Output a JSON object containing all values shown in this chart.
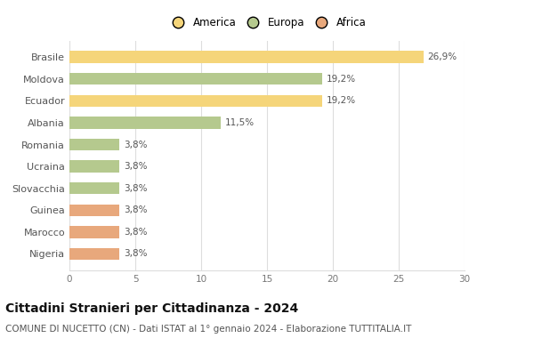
{
  "categories": [
    "Brasile",
    "Moldova",
    "Ecuador",
    "Albania",
    "Romania",
    "Ucraina",
    "Slovacchia",
    "Guinea",
    "Marocco",
    "Nigeria"
  ],
  "values": [
    26.9,
    19.2,
    19.2,
    11.5,
    3.8,
    3.8,
    3.8,
    3.8,
    3.8,
    3.8
  ],
  "labels": [
    "26,9%",
    "19,2%",
    "19,2%",
    "11,5%",
    "3,8%",
    "3,8%",
    "3,8%",
    "3,8%",
    "3,8%",
    "3,8%"
  ],
  "colors": [
    "#f5d57a",
    "#b5c98e",
    "#f5d57a",
    "#b5c98e",
    "#b5c98e",
    "#b5c98e",
    "#b5c98e",
    "#e8a87c",
    "#e8a87c",
    "#e8a87c"
  ],
  "legend_labels": [
    "America",
    "Europa",
    "Africa"
  ],
  "legend_colors": [
    "#f5d57a",
    "#b5c98e",
    "#e8a87c"
  ],
  "xlim": [
    0,
    30
  ],
  "xticks": [
    0,
    5,
    10,
    15,
    20,
    25,
    30
  ],
  "title": "Cittadini Stranieri per Cittadinanza - 2024",
  "subtitle": "COMUNE DI NUCETTO (CN) - Dati ISTAT al 1° gennaio 2024 - Elaborazione TUTTITALIA.IT",
  "title_fontsize": 10,
  "subtitle_fontsize": 7.5,
  "bg_color": "#ffffff",
  "grid_color": "#dddddd",
  "bar_height": 0.55
}
